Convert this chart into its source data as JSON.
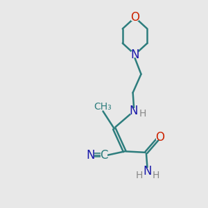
{
  "bg_color": "#e8e8e8",
  "bond_color": "#2d7d7d",
  "N_color": "#1a1aaa",
  "O_color": "#cc2200",
  "C_color": "#2d7d7d",
  "line_width": 1.8,
  "font_size": 11,
  "fig_w": 3.0,
  "fig_h": 3.0,
  "dpi": 100,
  "xlim": [
    0,
    10
  ],
  "ylim": [
    0,
    10
  ]
}
